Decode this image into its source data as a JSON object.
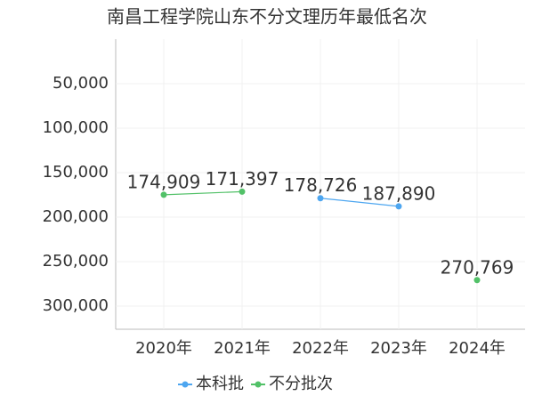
{
  "chart_data": {
    "type": "line",
    "title": "南昌工程学院山东不分文理历年最低名次",
    "categories": [
      "2020年",
      "2021年",
      "2022年",
      "2023年",
      "2024年"
    ],
    "series": [
      {
        "name": "本科批",
        "color": "#4da6f0",
        "values": [
          null,
          null,
          178726,
          187890,
          null
        ],
        "value_labels": [
          null,
          null,
          "178,726",
          "187,890",
          null
        ]
      },
      {
        "name": "不分批次",
        "color": "#52c168",
        "values": [
          174909,
          171397,
          null,
          null,
          270769
        ],
        "value_labels": [
          "174,909",
          "171,397",
          null,
          null,
          "270,769"
        ]
      }
    ],
    "ylim": [
      0,
      325000
    ],
    "y_inverted": true,
    "yticks": [
      {
        "value": 50000,
        "label": "50,000"
      },
      {
        "value": 100000,
        "label": "100,000"
      },
      {
        "value": 150000,
        "label": "150,000"
      },
      {
        "value": 200000,
        "label": "200,000"
      },
      {
        "value": 250000,
        "label": "250,000"
      },
      {
        "value": 300000,
        "label": "300,000"
      }
    ],
    "grid": true,
    "legend": "bottom"
  }
}
